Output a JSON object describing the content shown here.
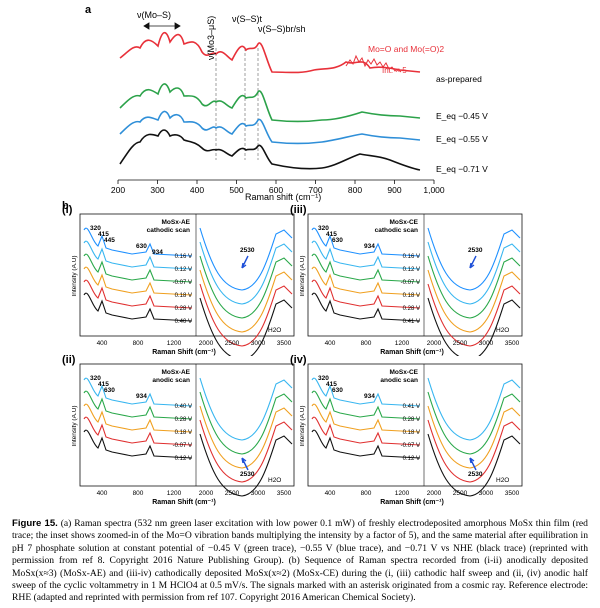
{
  "figure_letter_a": "a",
  "figure_letter_b": "b",
  "panel_a": {
    "peak_labels": [
      "ν(Mo–S)",
      "ν(Mo3–μS)",
      "ν(S–S)t",
      "ν(S–S)br/sh"
    ],
    "inset_label": "Mo=O and Mo(=O)2",
    "int_label": "Int. × 5",
    "trace_labels": [
      "as-prepared",
      "E_eq −0.45 V",
      "E_eq −0.55 V",
      "E_eq −0.71 V"
    ],
    "xlabel": "Raman shift (cm⁻¹)"
  },
  "panel_b": {
    "subpanels": [
      {
        "id": "(i)",
        "title1": "MoSx-AE",
        "title2": "cathodic scan",
        "peaks": [
          "320",
          "415",
          "445",
          "630",
          "934"
        ],
        "peak2": "2530",
        "potentials": [
          "0.16 V",
          "0.12 V",
          "-0.07 V",
          "0.18 V",
          "0.28 V",
          "0.40 V"
        ]
      },
      {
        "id": "(iii)",
        "title1": "MoSx-CE",
        "title2": "cathodic scan",
        "peaks": [
          "320",
          "415",
          "630",
          "934"
        ],
        "peak2": "2530",
        "potentials": [
          "0.16 V",
          "0.12 V",
          "-0.07 V",
          "0.18 V",
          "0.28 V",
          "0.41 V"
        ]
      },
      {
        "id": "(ii)",
        "title1": "MoSx-AE",
        "title2": "anodic scan",
        "peaks": [
          "320",
          "415",
          "630",
          "934"
        ],
        "peak2": "2530",
        "potentials": [
          "0.40 V",
          "0.28 V",
          "0.18 V",
          "-0.07 V",
          "0.12 V"
        ]
      },
      {
        "id": "(iv)",
        "title1": "MoSx-CE",
        "title2": "anodic scan",
        "peaks": [
          "320",
          "415",
          "630",
          "934"
        ],
        "peak2": "2530",
        "potentials": [
          "0.41 V",
          "0.28 V",
          "0.18 V",
          "-0.07 V",
          "0.12 V"
        ]
      }
    ],
    "ylabel": "Intensity (A.U)",
    "xlabel": "Raman Shift (cm⁻¹)",
    "h2o": "H2O",
    "left_ticks": [
      "400",
      "800",
      "1200"
    ],
    "right_ticks": [
      "2000",
      "2500",
      "3000",
      "3500"
    ]
  },
  "caption": {
    "lead": "Figure 15.",
    "text": "(a) Raman spectra (532 nm green laser excitation with low power 0.1 mW) of freshly electrodeposited amorphous MoSx thin film (red trace; the inset shows zoomed-in of the Mo=O vibration bands multiplying the intensity by a factor of 5), and the same material after equilibration in pH 7 phosphate solution at constant potential of −0.45 V (green trace), −0.55 V (blue trace), and −0.71 V vs NHE (black trace) (reprinted with permission from ref 8. Copyright 2016 Nature Publishing Group). (b) Sequence of Raman spectra recorded from (i-ii) anodically deposited MoSx(x≈3) (MoSx-AE) and (iii-iv) cathodically deposited MoSx(x≈2) (MoSx-CE) during the (i, (iii) cathodic half sweep and (ii, (iv) anodic half sweep of the cyclic voltammetry in 1 M HClO4 at 0.5 mV/s. The signals marked with an asterisk originated from a cosmic ray. Reference electrode: RHE (adapted and reprinted with permission from ref 107. Copyright 2016 American Chemical Society)."
  }
}
